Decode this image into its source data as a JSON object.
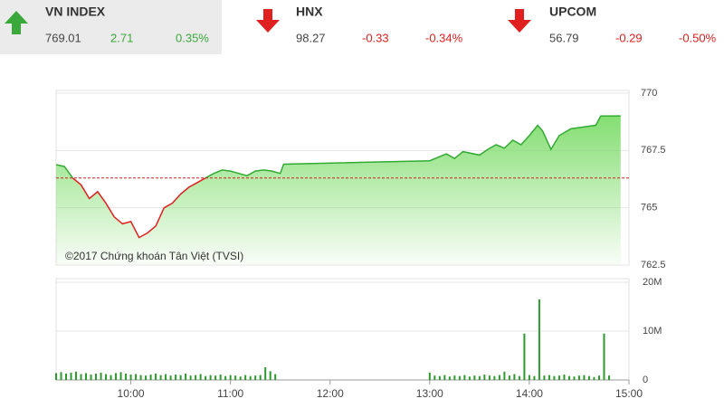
{
  "indices": [
    {
      "name": "VN INDEX",
      "value": "769.01",
      "change": "2.71",
      "percent": "0.35%",
      "direction": "up",
      "color": "#3aa83a"
    },
    {
      "name": "HNX",
      "value": "98.27",
      "change": "-0.33",
      "percent": "-0.34%",
      "direction": "down",
      "color": "#e02020"
    },
    {
      "name": "UPCOM",
      "value": "56.79",
      "change": "-0.29",
      "percent": "-0.50%",
      "direction": "down",
      "color": "#e02020"
    }
  ],
  "chart_data": [
    {
      "type": "area-line",
      "annotation": "©2017 Chứng khoán Tân Việt (TVSI)",
      "x": [
        555,
        560,
        565,
        570,
        575,
        580,
        585,
        590,
        595,
        600,
        605,
        610,
        615,
        620,
        625,
        630,
        635,
        640,
        645,
        650,
        655,
        660,
        665,
        670,
        675,
        680,
        685,
        690,
        692,
        780,
        790,
        795,
        800,
        810,
        815,
        820,
        825,
        830,
        835,
        840,
        845,
        848,
        853,
        858,
        865,
        875,
        880,
        883,
        895
      ],
      "values": [
        766.88,
        766.8,
        766.3,
        766.0,
        765.4,
        765.7,
        765.2,
        764.6,
        764.3,
        764.4,
        763.7,
        763.9,
        764.2,
        765.0,
        765.2,
        765.6,
        765.9,
        766.1,
        766.3,
        766.5,
        766.65,
        766.6,
        766.5,
        766.4,
        766.6,
        766.65,
        766.6,
        766.5,
        766.9,
        767.05,
        767.35,
        767.15,
        767.45,
        767.3,
        767.55,
        767.75,
        767.6,
        767.95,
        767.75,
        768.15,
        768.6,
        768.35,
        767.55,
        768.15,
        768.45,
        768.55,
        768.6,
        769.0,
        769.01
      ],
      "reference": 766.3,
      "line_color": "#33aa33",
      "below_color": "#e02020",
      "fill_color": "#7ddc6a",
      "xlim": [
        555,
        900
      ],
      "ylim": [
        762.5,
        770
      ],
      "yticks": [
        770,
        767.5,
        765,
        762.5
      ],
      "grid": true
    },
    {
      "type": "volume-bar",
      "color": "#2e9a2e",
      "x": [
        555,
        558,
        561,
        564,
        567,
        570,
        573,
        576,
        579,
        582,
        585,
        588,
        591,
        594,
        597,
        600,
        603,
        606,
        609,
        612,
        615,
        618,
        621,
        624,
        627,
        630,
        633,
        636,
        639,
        642,
        645,
        648,
        651,
        654,
        657,
        660,
        663,
        666,
        669,
        672,
        675,
        678,
        681,
        684,
        687,
        780,
        783,
        786,
        789,
        792,
        795,
        798,
        801,
        804,
        807,
        810,
        813,
        816,
        819,
        822,
        825,
        828,
        831,
        834,
        837,
        840,
        843,
        846,
        849,
        852,
        855,
        858,
        861,
        864,
        867,
        870,
        873,
        876,
        879,
        882,
        885,
        888
      ],
      "values": [
        1400000,
        1600000,
        1300000,
        1500000,
        1700000,
        1200000,
        1400000,
        1100000,
        1300000,
        1500000,
        1200000,
        1000000,
        1400000,
        1600000,
        1300000,
        1100000,
        1200000,
        1000000,
        900000,
        1100000,
        1300000,
        1000000,
        1200000,
        900000,
        1100000,
        1000000,
        1300000,
        900000,
        1000000,
        1200000,
        800000,
        1000000,
        900000,
        1100000,
        800000,
        1000000,
        900000,
        700000,
        1000000,
        800000,
        900000,
        1000000,
        2600000,
        1800000,
        1200000,
        1500000,
        900000,
        800000,
        1000000,
        700000,
        900000,
        800000,
        1000000,
        700000,
        900000,
        800000,
        1100000,
        900000,
        800000,
        1000000,
        1700000,
        900000,
        1200000,
        800000,
        9500000,
        1000000,
        800000,
        16500000,
        900000,
        1000000,
        800000,
        900000,
        1100000,
        800000,
        700000,
        900000,
        1000000,
        800000,
        600000,
        900000,
        9500000,
        900000
      ],
      "xlim": [
        555,
        900
      ],
      "xticks": [
        {
          "value": 600,
          "label": "10:00"
        },
        {
          "value": 660,
          "label": "11:00"
        },
        {
          "value": 720,
          "label": "12:00"
        },
        {
          "value": 780,
          "label": "13:00"
        },
        {
          "value": 840,
          "label": "14:00"
        },
        {
          "value": 900,
          "label": "15:00"
        }
      ],
      "ylim": [
        0,
        20000000
      ],
      "yticks": [
        {
          "value": 20000000,
          "label": "20M"
        },
        {
          "value": 10000000,
          "label": "10M"
        },
        0
      ],
      "grid": true
    }
  ]
}
